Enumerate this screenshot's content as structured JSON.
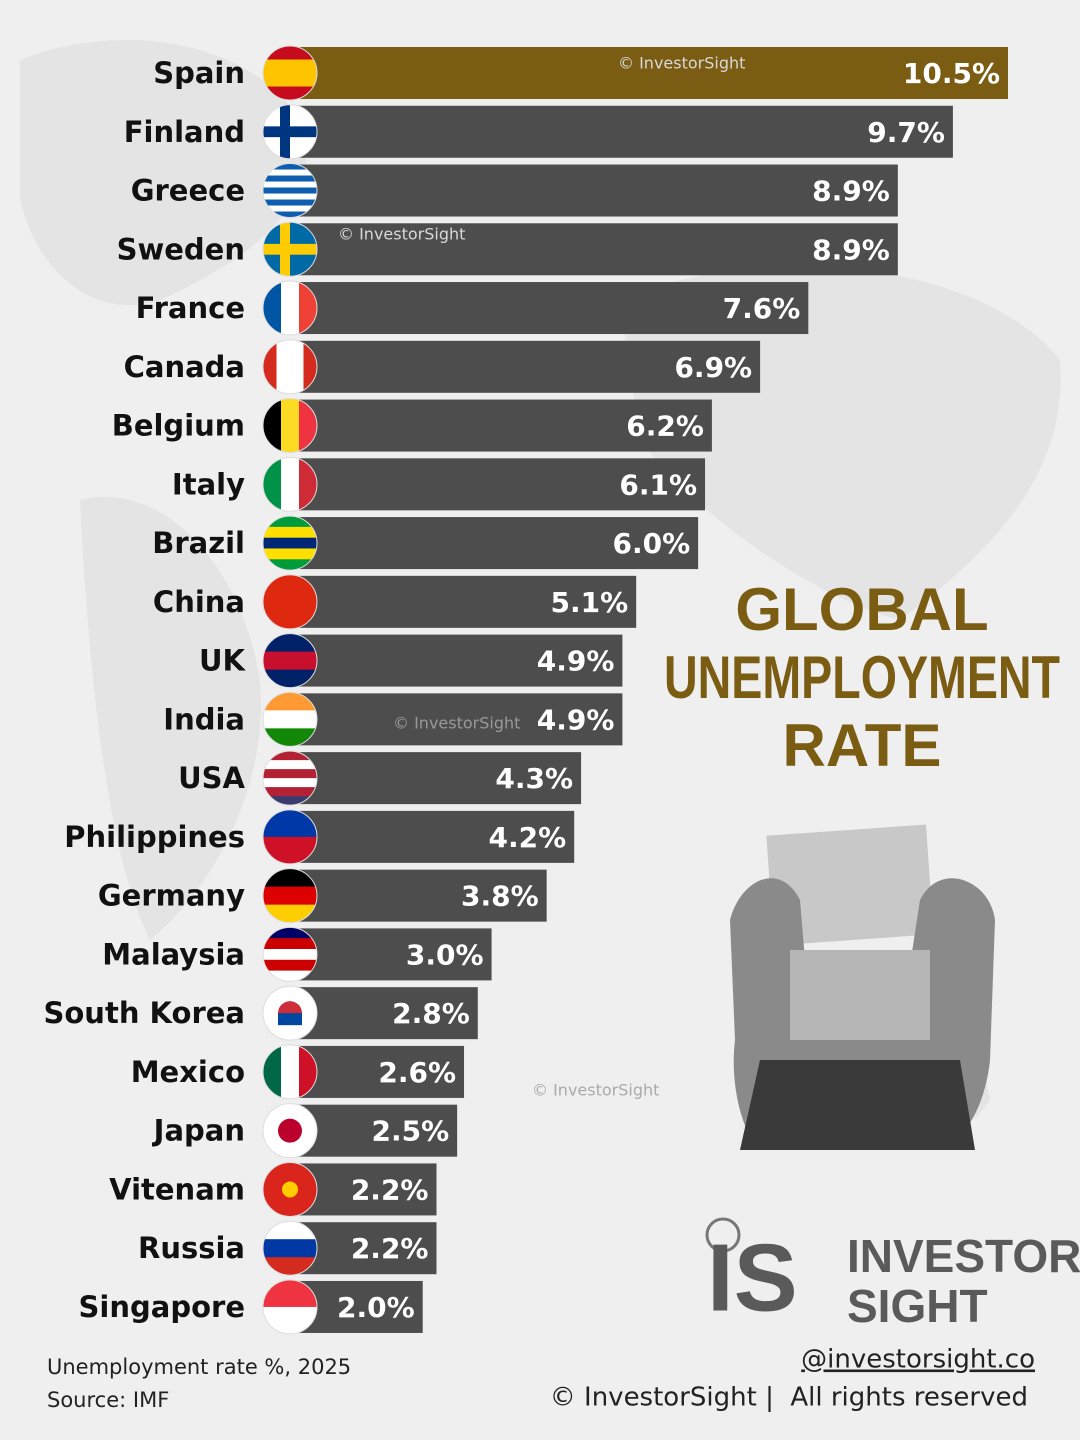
{
  "chart_data": {
    "type": "hbar",
    "title": [
      "GLOBAL",
      "UNEMPLOYMENT",
      "RATE"
    ],
    "categories": [
      "Spain",
      "Finland",
      "Greece",
      "Sweden",
      "France",
      "Canada",
      "Belgium",
      "Italy",
      "Brazil",
      "China",
      "UK",
      "India",
      "USA",
      "Philippines",
      "Germany",
      "Malaysia",
      "South Korea",
      "Mexico",
      "Japan",
      "Vitenam",
      "Russia",
      "Singapore"
    ],
    "values": [
      10.5,
      9.7,
      8.9,
      8.9,
      7.6,
      6.9,
      6.2,
      6.1,
      6.0,
      5.1,
      4.9,
      4.9,
      4.3,
      4.2,
      3.8,
      3.0,
      2.8,
      2.6,
      2.5,
      2.2,
      2.2,
      2.0
    ],
    "value_labels": [
      "10.5%",
      "9.7%",
      "8.9%",
      "8.9%",
      "7.6%",
      "6.9%",
      "6.2%",
      "6.1%",
      "6.0%",
      "5.1%",
      "4.9%",
      "4.9%",
      "4.3%",
      "4.2%",
      "3.8%",
      "3.0%",
      "2.8%",
      "2.6%",
      "2.5%",
      "2.2%",
      "2.2%",
      "2.0%"
    ],
    "colors": [
      "#7a5c12",
      "#4d4d4d",
      "#4d4d4d",
      "#4d4d4d",
      "#4d4d4d",
      "#4d4d4d",
      "#4d4d4d",
      "#4d4d4d",
      "#4d4d4d",
      "#4d4d4d",
      "#4d4d4d",
      "#4d4d4d",
      "#4d4d4d",
      "#4d4d4d",
      "#4d4d4d",
      "#4d4d4d",
      "#4d4d4d",
      "#4d4d4d",
      "#4d4d4d",
      "#4d4d4d",
      "#4d4d4d",
      "#4d4d4d"
    ],
    "notes": [
      "Unemployment rate %, 2025",
      "Source: IMF"
    ],
    "watermark": "© InvestorSight",
    "logo": {
      "mark": "IS",
      "lines": [
        "INVESTOR",
        "SIGHT"
      ]
    },
    "handle": "@investorsight.co",
    "copyright": "© InvestorSight |  All rights reserved"
  }
}
